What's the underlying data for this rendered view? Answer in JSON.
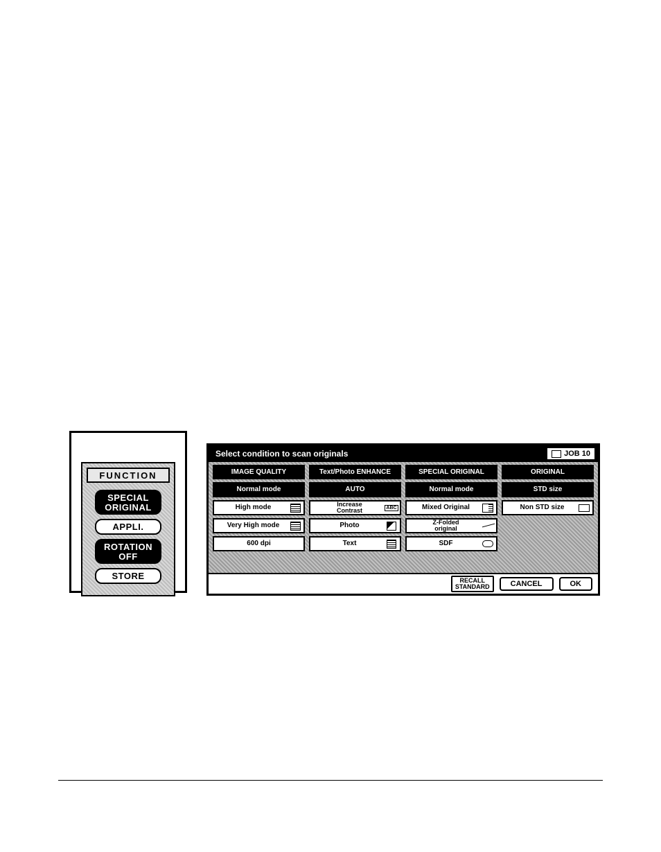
{
  "colors": {
    "black": "#000000",
    "white": "#ffffff",
    "hatch_light": "#d9d9d9",
    "hatch_dark": "#9a9a9a"
  },
  "function_panel": {
    "header": "FUNCTION",
    "buttons": [
      {
        "label": "SPECIAL\nORIGINAL",
        "selected": true
      },
      {
        "label": "APPLI.",
        "selected": false
      },
      {
        "label": "ROTATION\nOFF",
        "selected": true
      },
      {
        "label": "STORE",
        "selected": false
      }
    ]
  },
  "screen": {
    "title": "Select condition to scan originals",
    "job_label": "JOB 10",
    "columns": [
      {
        "header": "IMAGE QUALITY",
        "options": [
          {
            "label": "Normal mode",
            "selected": true,
            "icon": null
          },
          {
            "label": "High mode",
            "selected": false,
            "icon": "grid"
          },
          {
            "label": "Very High mode",
            "selected": false,
            "icon": "grid"
          },
          {
            "label": "600 dpi",
            "selected": false,
            "icon": null
          }
        ]
      },
      {
        "header": "Text/Photo ENHANCE",
        "options": [
          {
            "label": "AUTO",
            "selected": true,
            "icon": null
          },
          {
            "label": "Increase\nContrast",
            "selected": false,
            "icon": "abc"
          },
          {
            "label": "Photo",
            "selected": false,
            "icon": "photo"
          },
          {
            "label": "Text",
            "selected": false,
            "icon": "text"
          }
        ]
      },
      {
        "header": "SPECIAL ORIGINAL",
        "options": [
          {
            "label": "Normal mode",
            "selected": true,
            "icon": null
          },
          {
            "label": "Mixed Original",
            "selected": false,
            "icon": "mixed"
          },
          {
            "label": "Z-Folded\noriginal",
            "selected": false,
            "icon": "fold"
          },
          {
            "label": "SDF",
            "selected": false,
            "icon": "sdf"
          }
        ]
      },
      {
        "header": "ORIGINAL",
        "options": [
          {
            "label": "STD size",
            "selected": true,
            "icon": null
          },
          {
            "label": "Non STD size",
            "selected": false,
            "icon": "nonstd"
          }
        ]
      }
    ],
    "footer": {
      "recall": "RECALL\nSTANDARD",
      "cancel": "CANCEL",
      "ok": "OK"
    }
  }
}
